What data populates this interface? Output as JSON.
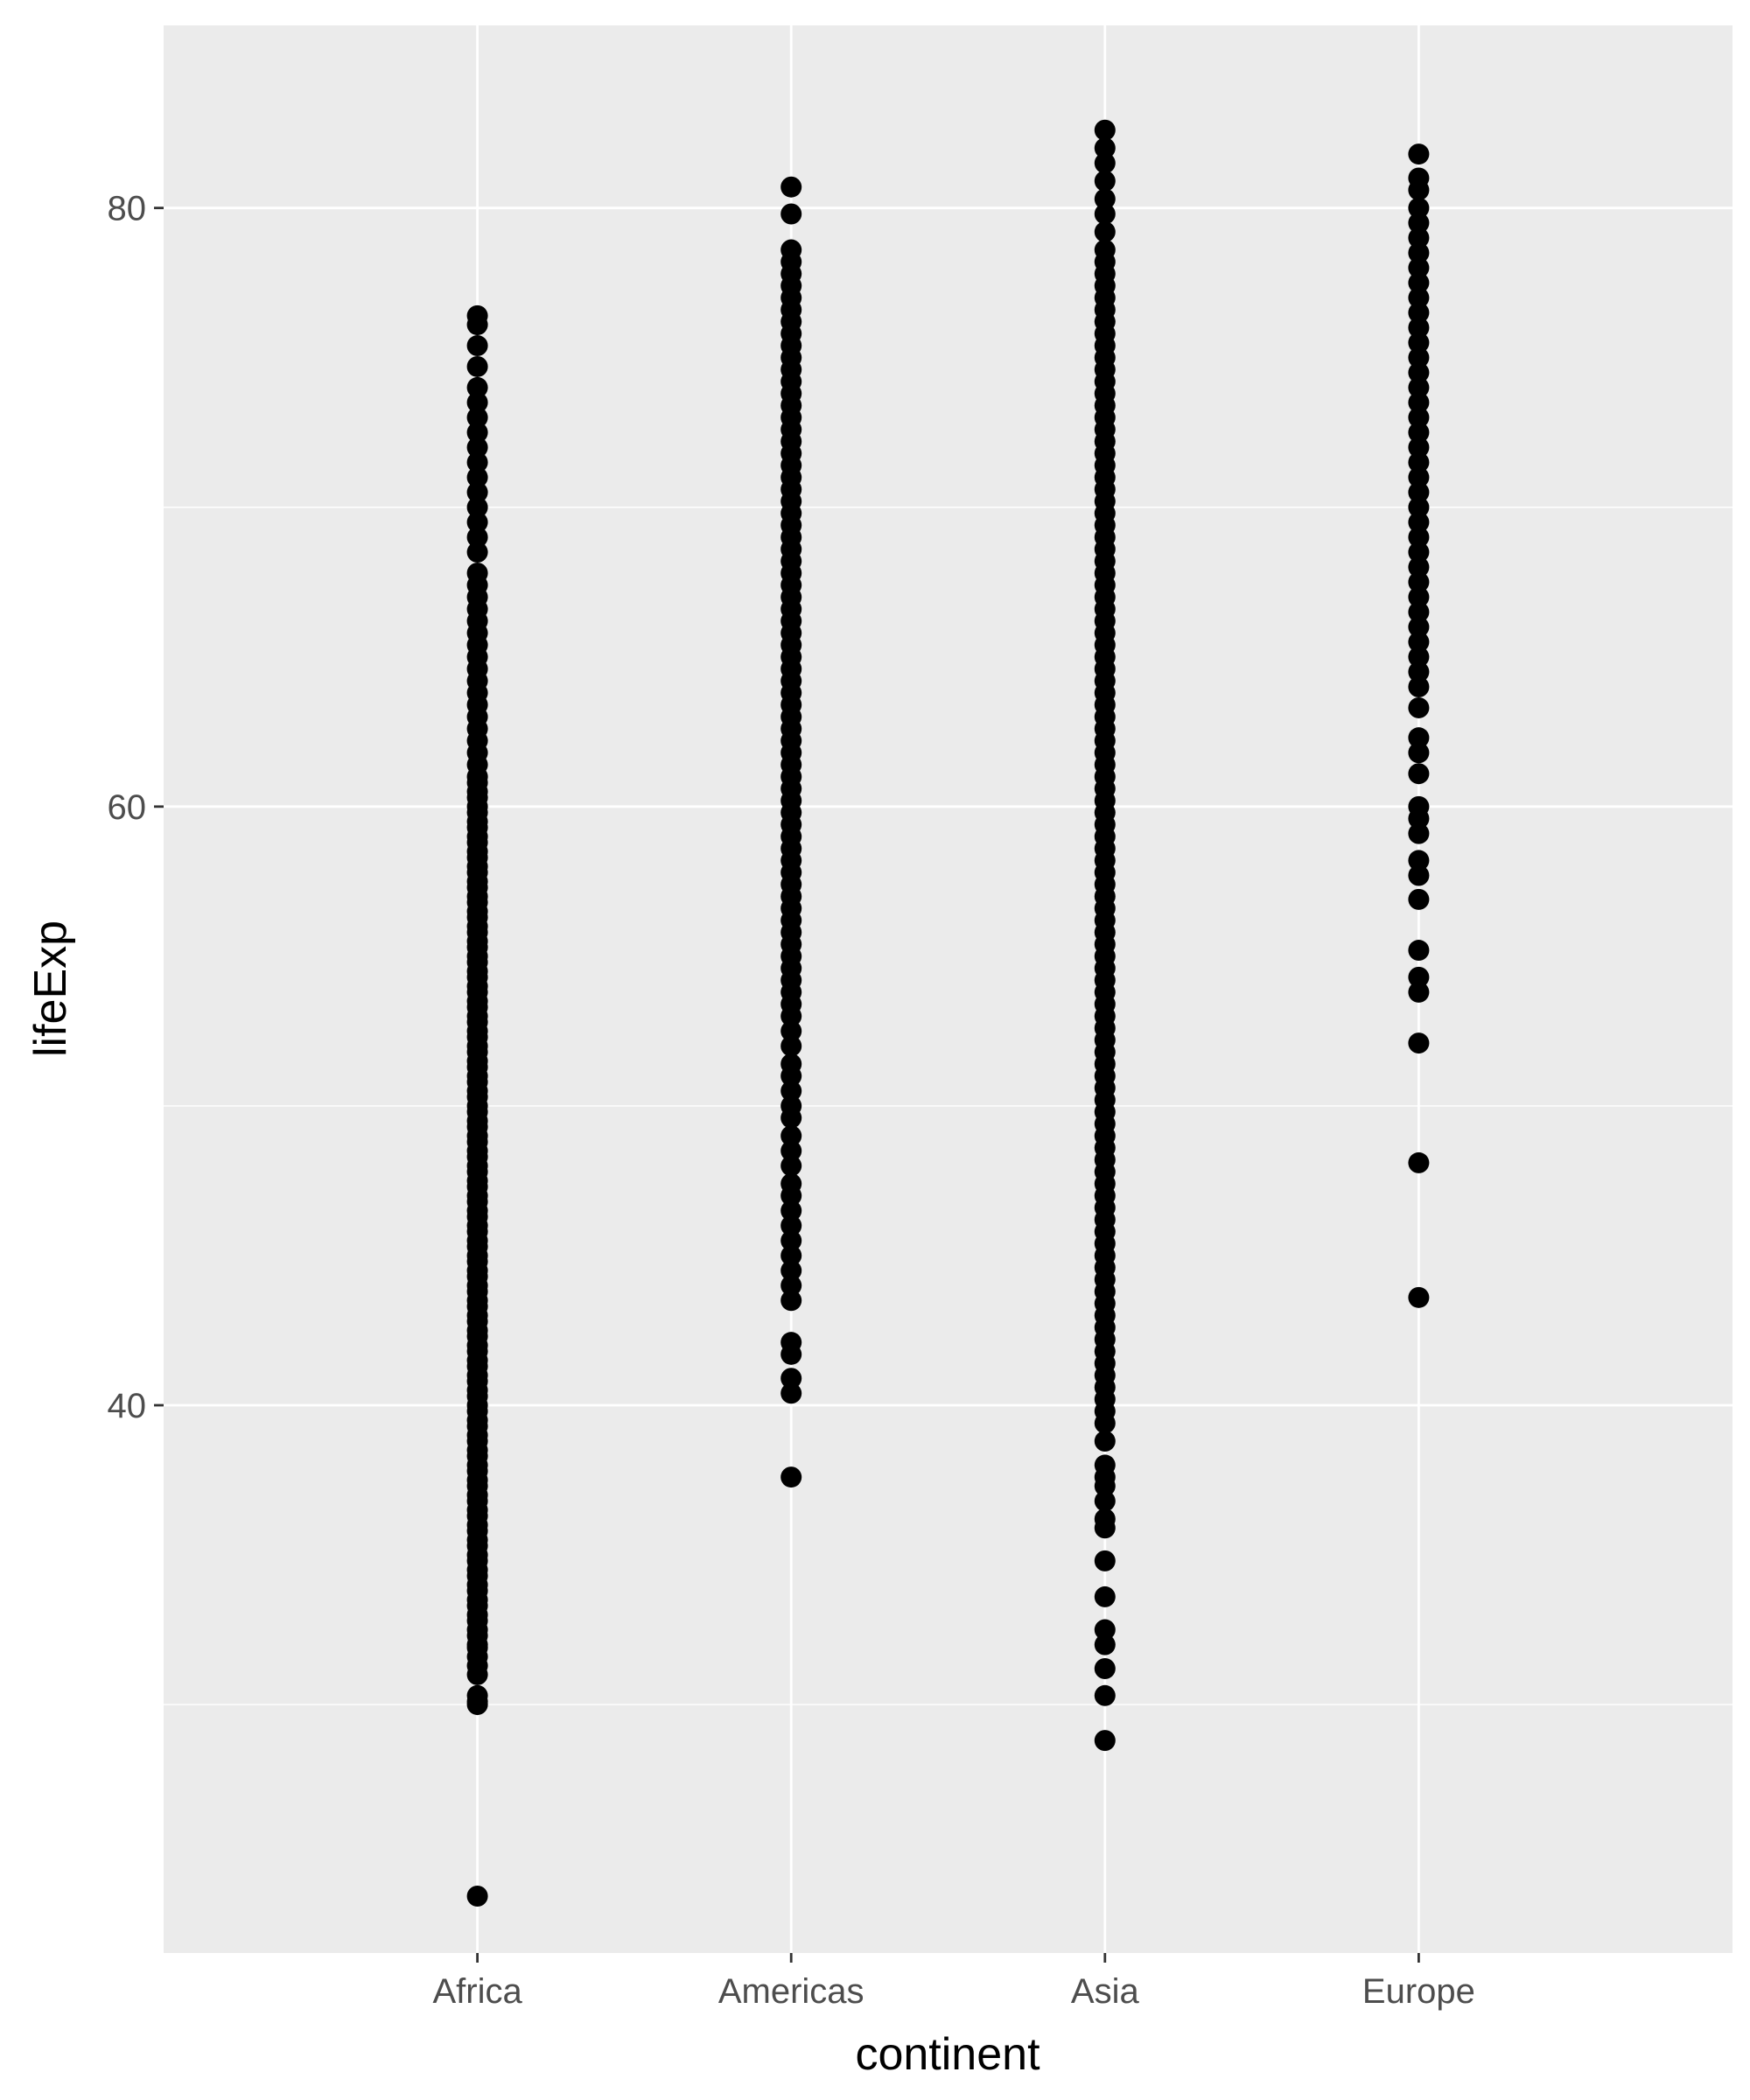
{
  "chart_data": {
    "type": "scatter",
    "title": "",
    "xlabel": "continent",
    "ylabel": "lifeExp",
    "categories": [
      "Africa",
      "Americas",
      "Asia",
      "Europe"
    ],
    "ylim": [
      21.7,
      86.1
    ],
    "y_ticks": [
      40,
      60,
      80
    ],
    "y_minor_ticks": [
      30,
      50,
      70
    ],
    "grid": true,
    "legend": "none",
    "colors": {
      "panel": "#ebebeb",
      "grid": "#ffffff",
      "points": "#000000",
      "tick_text": "#4d4d4d",
      "title_text": "#000000"
    },
    "points": [
      {
        "category": "Africa",
        "values": [
          23.6,
          30.0,
          30.1,
          30.3,
          31.0,
          31.3,
          31.6,
          31.9,
          32.0,
          32.3,
          32.5,
          32.8,
          33.0,
          33.3,
          33.5,
          33.8,
          34.0,
          34.3,
          34.5,
          34.8,
          35.0,
          35.3,
          35.5,
          35.8,
          36.0,
          36.3,
          36.5,
          36.8,
          37.0,
          37.3,
          37.5,
          37.8,
          38.0,
          38.3,
          38.5,
          38.8,
          39.0,
          39.3,
          39.5,
          39.8,
          40.0,
          40.3,
          40.5,
          40.8,
          41.0,
          41.3,
          41.5,
          41.8,
          42.0,
          42.3,
          42.5,
          42.8,
          43.0,
          43.3,
          43.5,
          43.8,
          44.0,
          44.3,
          44.5,
          44.8,
          45.0,
          45.3,
          45.5,
          45.8,
          46.0,
          46.3,
          46.5,
          46.8,
          47.0,
          47.3,
          47.5,
          47.8,
          48.0,
          48.3,
          48.5,
          48.8,
          49.0,
          49.3,
          49.5,
          49.8,
          50.0,
          50.3,
          50.5,
          50.8,
          51.0,
          51.3,
          51.5,
          51.8,
          52.0,
          52.3,
          52.5,
          52.8,
          53.0,
          53.3,
          53.5,
          53.8,
          54.0,
          54.3,
          54.5,
          54.8,
          55.0,
          55.3,
          55.5,
          55.8,
          56.0,
          56.3,
          56.5,
          56.8,
          57.0,
          57.3,
          57.5,
          57.8,
          58.0,
          58.3,
          58.5,
          58.8,
          59.0,
          59.3,
          59.5,
          59.8,
          60.0,
          60.3,
          60.5,
          60.8,
          61.0,
          61.4,
          61.8,
          62.2,
          62.6,
          63.0,
          63.4,
          63.8,
          64.2,
          64.6,
          65.0,
          65.4,
          65.8,
          66.2,
          66.6,
          67.0,
          67.4,
          67.8,
          68.5,
          69.0,
          69.5,
          70.0,
          70.5,
          71.0,
          71.5,
          72.0,
          72.5,
          73.0,
          73.5,
          74.0,
          74.7,
          75.4,
          76.1,
          76.4
        ]
      },
      {
        "category": "Americas",
        "values": [
          37.6,
          40.4,
          40.9,
          41.7,
          42.1,
          43.5,
          44.0,
          44.5,
          45.0,
          45.5,
          46.0,
          46.5,
          47.0,
          47.4,
          48.0,
          48.5,
          49.0,
          49.6,
          50.0,
          50.5,
          51.0,
          51.4,
          52.0,
          52.5,
          53.0,
          53.4,
          53.8,
          54.2,
          54.6,
          55.0,
          55.4,
          55.8,
          56.2,
          56.6,
          57.0,
          57.4,
          57.8,
          58.2,
          58.6,
          59.0,
          59.4,
          59.8,
          60.2,
          60.6,
          61.0,
          61.4,
          61.8,
          62.2,
          62.6,
          63.0,
          63.4,
          63.8,
          64.2,
          64.6,
          65.0,
          65.4,
          65.8,
          66.2,
          66.6,
          67.0,
          67.4,
          67.8,
          68.2,
          68.6,
          69.0,
          69.4,
          69.8,
          70.2,
          70.6,
          71.0,
          71.4,
          71.8,
          72.2,
          72.6,
          73.0,
          73.4,
          73.8,
          74.2,
          74.6,
          75.0,
          75.4,
          75.8,
          76.2,
          76.6,
          77.0,
          77.4,
          77.8,
          78.2,
          78.6,
          79.8,
          80.7
        ]
      },
      {
        "category": "Asia",
        "values": [
          28.8,
          30.3,
          31.2,
          32.0,
          32.5,
          33.6,
          34.8,
          35.9,
          36.2,
          36.8,
          37.3,
          37.6,
          38.0,
          38.8,
          39.4,
          39.8,
          40.2,
          40.6,
          41.0,
          41.4,
          41.8,
          42.2,
          42.6,
          43.0,
          43.4,
          43.8,
          44.2,
          44.6,
          45.0,
          45.4,
          45.8,
          46.2,
          46.6,
          47.0,
          47.4,
          47.8,
          48.2,
          48.6,
          49.0,
          49.4,
          49.8,
          50.2,
          50.6,
          51.0,
          51.4,
          51.8,
          52.2,
          52.6,
          53.0,
          53.4,
          53.8,
          54.2,
          54.6,
          55.0,
          55.4,
          55.8,
          56.2,
          56.6,
          57.0,
          57.4,
          57.8,
          58.2,
          58.6,
          59.0,
          59.4,
          59.8,
          60.2,
          60.6,
          61.0,
          61.4,
          61.8,
          62.2,
          62.6,
          63.0,
          63.4,
          63.8,
          64.2,
          64.6,
          65.0,
          65.4,
          65.8,
          66.2,
          66.6,
          67.0,
          67.4,
          67.8,
          68.2,
          68.6,
          69.0,
          69.4,
          69.8,
          70.2,
          70.6,
          71.0,
          71.4,
          71.8,
          72.2,
          72.6,
          73.0,
          73.4,
          73.8,
          74.2,
          74.6,
          75.0,
          75.4,
          75.8,
          76.2,
          76.6,
          77.0,
          77.4,
          77.8,
          78.2,
          78.6,
          79.2,
          79.8,
          80.3,
          80.9,
          81.5,
          82.0,
          82.6
        ]
      },
      {
        "category": "Europe",
        "values": [
          43.6,
          48.1,
          52.1,
          53.8,
          54.3,
          55.2,
          56.9,
          57.7,
          58.2,
          59.1,
          59.6,
          60.0,
          61.1,
          61.8,
          62.3,
          63.3,
          64.0,
          64.5,
          65.0,
          65.5,
          66.0,
          66.5,
          67.0,
          67.5,
          68.0,
          68.5,
          69.0,
          69.5,
          70.0,
          70.5,
          71.0,
          71.5,
          72.0,
          72.5,
          73.0,
          73.5,
          74.0,
          74.5,
          75.0,
          75.5,
          76.0,
          76.5,
          77.0,
          77.5,
          78.0,
          78.5,
          79.0,
          79.5,
          80.0,
          80.6,
          81.0,
          81.8
        ]
      }
    ]
  }
}
